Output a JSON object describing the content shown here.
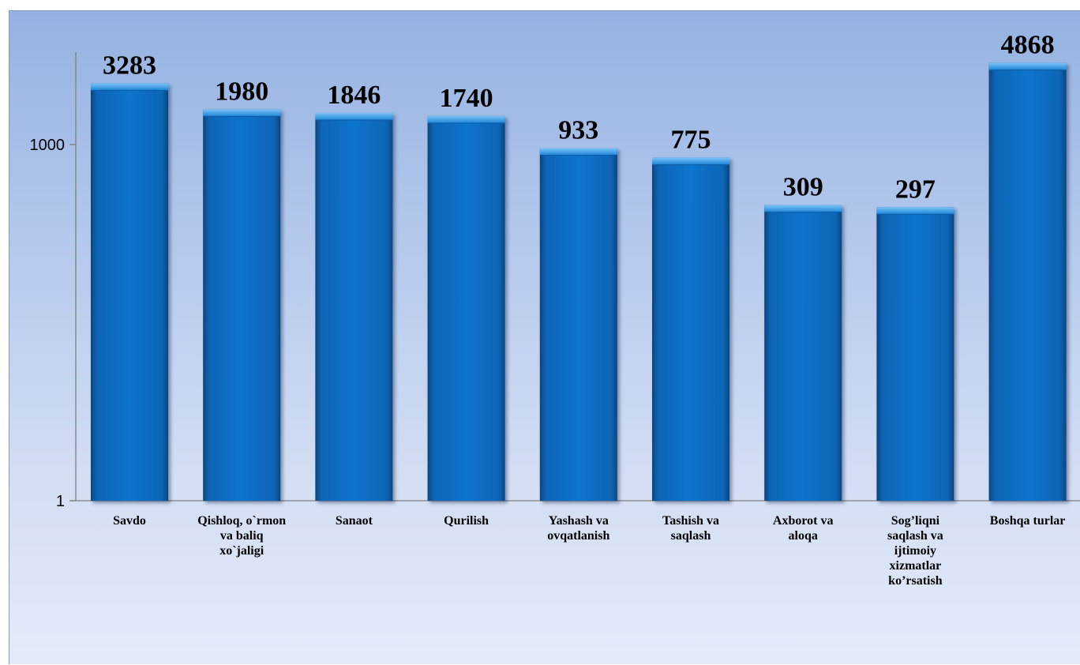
{
  "chart_data": {
    "type": "bar",
    "scale": "log",
    "categories": [
      [
        "Savdo"
      ],
      [
        "Qishloq, o`rmon",
        "va baliq",
        "xo`jaligi"
      ],
      [
        "Sanaot"
      ],
      [
        "Qurilish"
      ],
      [
        "Yashash va",
        "ovqatlanish"
      ],
      [
        "Tashish va",
        "saqlash"
      ],
      [
        "Axborot va",
        "aloqa"
      ],
      [
        "Sog’liqni",
        "saqlash va",
        "ijtimoiy",
        "xizmatlar",
        "ko’rsatish"
      ],
      [
        "Boshqa  turlar"
      ]
    ],
    "values": [
      3283,
      1980,
      1846,
      1740,
      933,
      775,
      309,
      297,
      4868
    ],
    "data_labels": [
      "3283",
      "1980",
      "1846",
      "1740",
      "933",
      "775",
      "309",
      "297",
      "4868"
    ],
    "y_ticks": [
      {
        "value": 1,
        "label": "1"
      },
      {
        "value": 1000,
        "label": "1000"
      }
    ],
    "title": "",
    "xlabel": "",
    "ylabel": "",
    "grid": false,
    "colors": {
      "bar": "#0b72c9",
      "bar_dark": "#06457e",
      "bar_top": "#5fb0f0",
      "axis": "#808080"
    }
  }
}
